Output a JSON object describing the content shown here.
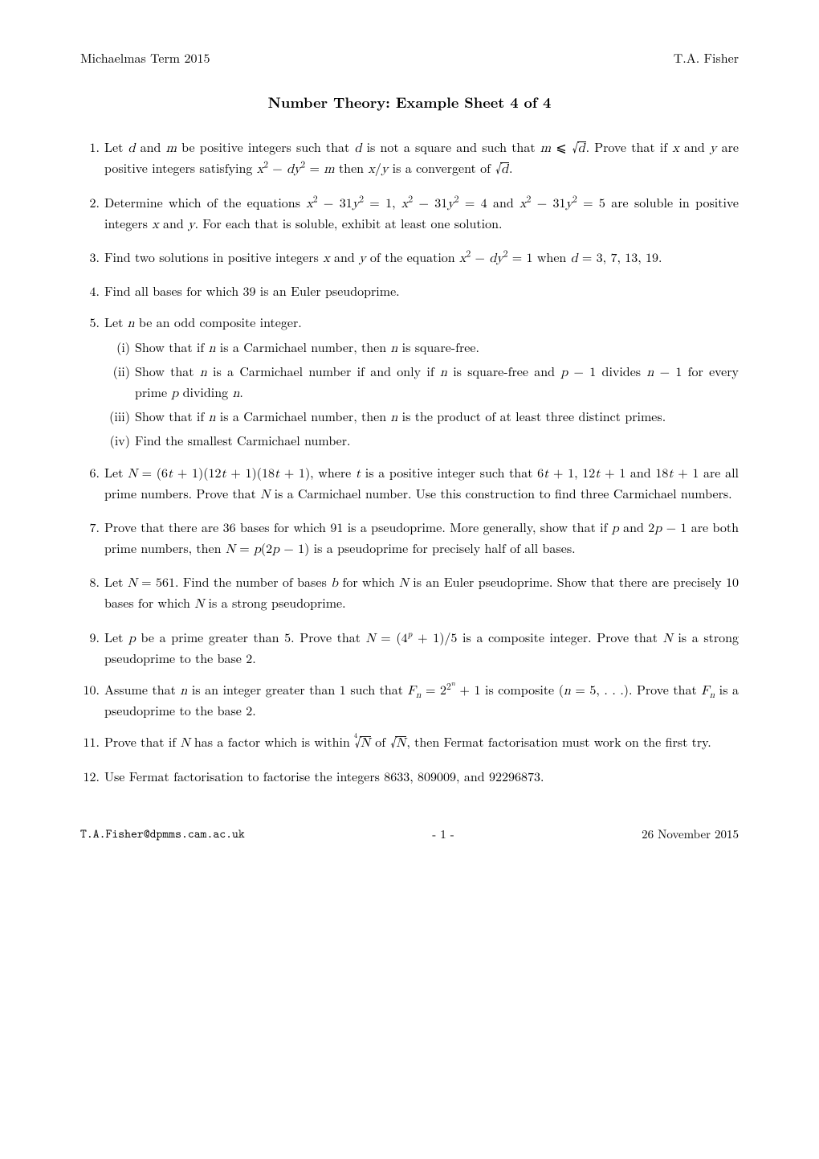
{
  "header": {
    "left": "Michaelmas Term 2015",
    "right": "T.A. Fisher"
  },
  "title": "Number Theory: Example Sheet 4 of 4",
  "problems": [
    {
      "html": "Let <span class='math'>d</span> and <span class='math'>m</span> be positive integers such that <span class='math'>d</span> is not a square and such that <span class='math'>m</span> ⩽ <span class='sqrt'><span class='rad math'>d</span></span>. Prove that if <span class='math'>x</span> and <span class='math'>y</span> are positive integers satisfying <span class='math'>x</span><sup>2</sup> − <span class='math'>dy</span><sup>2</sup> = <span class='math'>m</span> then <span class='math'>x</span>/<span class='math'>y</span> is a convergent of <span class='sqrt'><span class='rad math'>d</span></span>."
    },
    {
      "html": "Determine which of the equations <span class='math'>x</span><sup>2</sup> − 31<span class='math'>y</span><sup>2</sup> = 1, <span class='math'>x</span><sup>2</sup> − 31<span class='math'>y</span><sup>2</sup> = 4 and <span class='math'>x</span><sup>2</sup> − 31<span class='math'>y</span><sup>2</sup> = 5 are soluble in positive integers <span class='math'>x</span> and <span class='math'>y</span>. For each that is soluble, exhibit at least one solution."
    },
    {
      "html": "Find two solutions in positive integers <span class='math'>x</span> and <span class='math'>y</span> of the equation <span class='math'>x</span><sup>2</sup> − <span class='math'>dy</span><sup>2</sup> = 1 when <span class='math'>d</span> = 3, 7, 13, 19."
    },
    {
      "html": "Find all bases for which 39 is an Euler pseudoprime."
    },
    {
      "html": "Let <span class='math'>n</span> be an odd composite integer.",
      "sub": [
        "Show that if <span class='math'>n</span> is a Carmichael number, then <span class='math'>n</span> is square-free.",
        "Show that <span class='math'>n</span> is a Carmichael number if and only if <span class='math'>n</span> is square-free and <span class='math'>p</span> − 1 divides <span class='math'>n</span> − 1 for every prime <span class='math'>p</span> dividing <span class='math'>n</span>.",
        "Show that if <span class='math'>n</span> is a Carmichael number, then <span class='math'>n</span> is the product of at least three distinct primes.",
        "Find the smallest Carmichael number."
      ]
    },
    {
      "html": "Let <span class='math'>N</span> = (6<span class='math'>t</span> + 1)(12<span class='math'>t</span> + 1)(18<span class='math'>t</span> + 1), where <span class='math'>t</span> is a positive integer such that 6<span class='math'>t</span> + 1, 12<span class='math'>t</span> + 1 and 18<span class='math'>t</span> + 1 are all prime numbers. Prove that <span class='math'>N</span> is a Carmichael number. Use this construction to find three Carmichael numbers."
    },
    {
      "html": "Prove that there are 36 bases for which 91 is a pseudoprime. More generally, show that if <span class='math'>p</span> and 2<span class='math'>p</span> − 1 are both prime numbers, then <span class='math'>N</span> = <span class='math'>p</span>(2<span class='math'>p</span> − 1) is a pseudoprime for precisely half of all bases."
    },
    {
      "html": "Let <span class='math'>N</span> = 561. Find the number of bases <span class='math'>b</span> for which <span class='math'>N</span> is an Euler pseudoprime. Show that there are precisely 10 bases for which <span class='math'>N</span> is a strong pseudoprime."
    },
    {
      "html": "Let <span class='math'>p</span> be a prime greater than 5. Prove that <span class='math'>N</span> = (4<sup class='it'>p</sup> + 1)/5 is a composite integer. Prove that <span class='math'>N</span> is a strong pseudoprime to the base 2."
    },
    {
      "html": "Assume that <span class='math'>n</span> is an integer greater than 1 such that <span class='math'>F<sub class='it'>n</sub></span> = 2<sup>2<sup class='it' style='font-size:0.8em'>n</sup></sup> + 1 is composite (<span class='math'>n</span> = 5, . . .). Prove that <span class='math'>F<sub class='it'>n</sub></span> is a pseudoprime to the base 2."
    },
    {
      "html": "Prove that if <span class='math'>N</span> has a factor which is within <span class='root4'><span class='idx'>4</span><span class='sqrt'><span class='rad math'>N</span></span></span> of <span class='sqrt'><span class='rad math'>N</span></span>, then Fermat factorisation must work on the first try."
    },
    {
      "html": "Use Fermat factorisation to factorise the integers 8633, 809009, and 92296873."
    }
  ],
  "footer": {
    "email": "T.A.Fisher@dpmms.cam.ac.uk",
    "page": "- 1 -",
    "date": "26 November 2015"
  }
}
